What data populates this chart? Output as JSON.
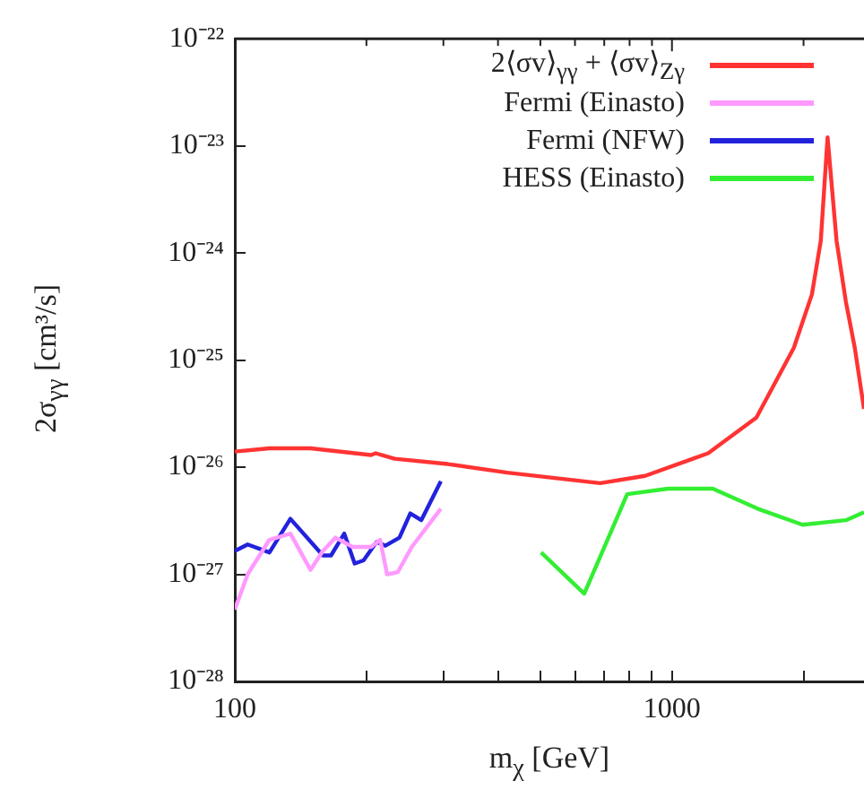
{
  "chart_data": {
    "type": "line",
    "xlabel": "m$_{χ}$ [GeV]",
    "ylabel": "2σ$_{γγ}$ [cm³/s]",
    "log": "xy",
    "grid": false,
    "legend": "top right",
    "marker": "none",
    "line_style": "solid",
    "xlim": [
      100,
      2750
    ],
    "xticks": [
      100,
      {
        "value": 200,
        "label": null
      },
      {
        "value": 300,
        "label": null
      },
      {
        "value": 400,
        "label": null
      },
      {
        "value": 500,
        "label": null
      },
      {
        "value": 600,
        "label": null
      },
      {
        "value": 700,
        "label": null
      },
      {
        "value": 800,
        "label": null
      },
      {
        "value": 900,
        "label": null
      },
      1000,
      {
        "value": 2000,
        "label": null
      }
    ],
    "ylim": [
      1e-28,
      1e-22
    ],
    "yticks": [
      {
        "value": 1e-28,
        "label": "10⁻²⁸"
      },
      {
        "value": 1e-27,
        "label": "10⁻²⁷"
      },
      {
        "value": 1e-26,
        "label": "10⁻²⁶"
      },
      {
        "value": 1e-25,
        "label": "10⁻²⁵"
      },
      {
        "value": 1e-24,
        "label": "10⁻²⁴"
      },
      {
        "value": 1e-23,
        "label": "10⁻²³"
      },
      {
        "value": 1e-22,
        "label": "10⁻²²"
      }
    ],
    "series": [
      {
        "name": "2⟨σv⟩$_{γγ}$ + ⟨σv⟩$_{Zγ}$",
        "color": "#ff3333",
        "x": [
          100,
          120,
          149,
          205,
          210,
          232,
          307,
          420,
          685,
          868,
          1210,
          1560,
          1900,
          2090,
          2190,
          2270,
          2380,
          2500,
          2620,
          2750
        ],
        "values": [
          1.4e-26,
          1.5e-26,
          1.5e-26,
          1.3e-26,
          1.35e-26,
          1.2e-26,
          1.07e-26,
          8.9e-27,
          7.1e-27,
          8.3e-27,
          1.35e-26,
          2.9e-26,
          1.3e-25,
          4.1e-25,
          1.3e-24,
          1.2e-23,
          1.3e-24,
          3.5e-25,
          1.3e-25,
          3.5e-26
        ]
      },
      {
        "name": "Fermi (Einasto)",
        "color": "#ff99ff",
        "x": [
          100,
          107,
          120,
          134,
          149,
          159,
          170,
          186,
          205,
          215,
          223,
          236,
          254,
          296
        ],
        "values": [
          4.7e-28,
          1e-27,
          2.1e-27,
          2.4e-27,
          1.1e-27,
          1.65e-27,
          2.2e-27,
          1.8e-27,
          1.8e-27,
          2.1e-27,
          1e-27,
          1.05e-27,
          1.8e-27,
          4.1e-27
        ]
      },
      {
        "name": "Fermi (NFW)",
        "color": "#2222dd",
        "x": [
          100,
          107,
          120,
          134,
          159,
          166,
          178,
          188,
          197,
          211,
          221,
          238,
          252,
          267,
          296
        ],
        "values": [
          1.65e-27,
          1.9e-27,
          1.6e-27,
          3.3e-27,
          1.5e-27,
          1.5e-27,
          2.4e-27,
          1.26e-27,
          1.35e-27,
          2e-27,
          1.85e-27,
          2.2e-27,
          3.7e-27,
          3.2e-27,
          7.4e-27
        ]
      },
      {
        "name": "HESS (Einasto)",
        "color": "#33ee33",
        "x": [
          502,
          630,
          790,
          980,
          1240,
          1570,
          1990,
          2500,
          2750
        ],
        "values": [
          1.6e-27,
          6.6e-28,
          5.6e-27,
          6.3e-27,
          6.3e-27,
          4.1e-27,
          2.9e-27,
          3.2e-27,
          3.8e-27
        ]
      }
    ]
  }
}
